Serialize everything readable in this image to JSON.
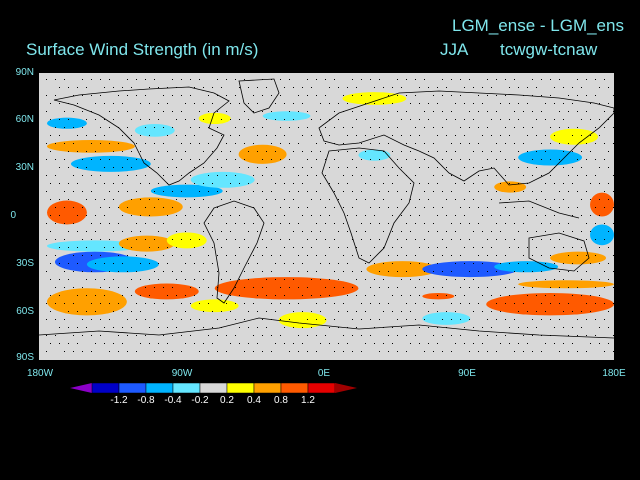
{
  "titles": {
    "main": "Surface Wind Strength (in m/s)",
    "experiment": "LGM_ense - LGM_ens",
    "season": "JJA",
    "variable": "tcwgw-tcnaw"
  },
  "map": {
    "background_color": "#d8d8d8",
    "lat_labels": [
      "90N",
      "60N",
      "30N",
      "0",
      "30S",
      "60S",
      "90S"
    ],
    "lon_labels": [
      "180W",
      "90W",
      "0E",
      "90E",
      "180E"
    ]
  },
  "colorbar": {
    "labels": [
      "-1.2",
      "-0.8",
      "-0.4",
      "-0.2",
      "0.2",
      "0.4",
      "0.8",
      "1.2"
    ],
    "colors": [
      "#0000c8",
      "#1e5aff",
      "#00b4ff",
      "#64e6ff",
      "#d8d8d8",
      "#ffff00",
      "#ffa000",
      "#ff5a00",
      "#e60000"
    ],
    "left_arrow_color": "#8c00c8",
    "right_arrow_color": "#a00000"
  },
  "chart_data": {
    "type": "heatmap",
    "title": "Surface Wind Strength (in m/s)",
    "subtitle": "LGM_ense - LGM_ens  JJA  tcwgw-tcnaw",
    "xlim": [
      -180,
      180
    ],
    "ylim": [
      -90,
      90
    ],
    "x_ticks": [
      "180W",
      "90W",
      "0E",
      "90E",
      "180E"
    ],
    "y_ticks": [
      "90N",
      "60N",
      "30N",
      "0",
      "30S",
      "60S",
      "90S"
    ],
    "legend": [
      "-1.2",
      "-0.8",
      "-0.4",
      "-0.2",
      "0.2",
      "0.4",
      "0.8",
      "1.2"
    ],
    "regions": [
      {
        "lon": [
          -170,
          -120
        ],
        "lat": [
          -35,
          -22
        ],
        "value": -1.0
      },
      {
        "lon": [
          -150,
          -105
        ],
        "lat": [
          -35,
          -25
        ],
        "value": -0.6
      },
      {
        "lon": [
          -175,
          -115
        ],
        "lat": [
          -22,
          -15
        ],
        "value": -0.3
      },
      {
        "lon": [
          -175,
          -125
        ],
        "lat": [
          -62,
          -45
        ],
        "value": 0.6
      },
      {
        "lon": [
          -120,
          -80
        ],
        "lat": [
          -52,
          -42
        ],
        "value": 0.8
      },
      {
        "lon": [
          -70,
          20
        ],
        "lat": [
          -52,
          -38
        ],
        "value": 0.9
      },
      {
        "lon": [
          -85,
          -55
        ],
        "lat": [
          -60,
          -52
        ],
        "value": 0.3
      },
      {
        "lon": [
          -130,
          -95
        ],
        "lat": [
          -22,
          -12
        ],
        "value": 0.6
      },
      {
        "lon": [
          -100,
          -75
        ],
        "lat": [
          -20,
          -10
        ],
        "value": 0.3
      },
      {
        "lon": [
          -175,
          -150
        ],
        "lat": [
          -5,
          10
        ],
        "value": 0.9
      },
      {
        "lon": [
          -130,
          -90
        ],
        "lat": [
          0,
          12
        ],
        "value": 0.6
      },
      {
        "lon": [
          -110,
          -65
        ],
        "lat": [
          12,
          20
        ],
        "value": -0.4
      },
      {
        "lon": [
          -85,
          -45
        ],
        "lat": [
          18,
          28
        ],
        "value": -0.3
      },
      {
        "lon": [
          -55,
          -25
        ],
        "lat": [
          33,
          45
        ],
        "value": 0.6
      },
      {
        "lon": [
          -160,
          -110
        ],
        "lat": [
          28,
          38
        ],
        "value": -0.4
      },
      {
        "lon": [
          -175,
          -120
        ],
        "lat": [
          40,
          48
        ],
        "value": 0.5
      },
      {
        "lon": [
          -175,
          -150
        ],
        "lat": [
          55,
          62
        ],
        "value": -0.4
      },
      {
        "lon": [
          -80,
          -60
        ],
        "lat": [
          58,
          65
        ],
        "value": 0.3
      },
      {
        "lon": [
          -120,
          -95
        ],
        "lat": [
          50,
          58
        ],
        "value": -0.3
      },
      {
        "lon": [
          25,
          70
        ],
        "lat": [
          -38,
          -28
        ],
        "value": 0.4
      },
      {
        "lon": [
          60,
          120
        ],
        "lat": [
          -38,
          -28
        ],
        "value": -0.9
      },
      {
        "lon": [
          105,
          145
        ],
        "lat": [
          -35,
          -28
        ],
        "value": -0.5
      },
      {
        "lon": [
          100,
          180
        ],
        "lat": [
          -62,
          -48
        ],
        "value": 0.9
      },
      {
        "lon": [
          120,
          180
        ],
        "lat": [
          -45,
          -40
        ],
        "value": 0.4
      },
      {
        "lon": [
          60,
          80
        ],
        "lat": [
          -52,
          -48
        ],
        "value": 0.8
      },
      {
        "lon": [
          140,
          175
        ],
        "lat": [
          -30,
          -22
        ],
        "value": 0.5
      },
      {
        "lon": [
          165,
          180
        ],
        "lat": [
          0,
          15
        ],
        "value": 0.8
      },
      {
        "lon": [
          165,
          180
        ],
        "lat": [
          -18,
          -5
        ],
        "value": -0.4
      },
      {
        "lon": [
          105,
          125
        ],
        "lat": [
          15,
          22
        ],
        "value": 0.4
      },
      {
        "lon": [
          120,
          160
        ],
        "lat": [
          32,
          42
        ],
        "value": -0.4
      },
      {
        "lon": [
          140,
          170
        ],
        "lat": [
          45,
          55
        ],
        "value": 0.3
      },
      {
        "lon": [
          -40,
          -10
        ],
        "lat": [
          60,
          66
        ],
        "value": -0.3
      },
      {
        "lon": [
          20,
          40
        ],
        "lat": [
          35,
          42
        ],
        "value": -0.3
      },
      {
        "lon": [
          -30,
          0
        ],
        "lat": [
          -70,
          -60
        ],
        "value": 0.3
      },
      {
        "lon": [
          60,
          90
        ],
        "lat": [
          -68,
          -60
        ],
        "value": -0.3
      },
      {
        "lon": [
          10,
          50
        ],
        "lat": [
          70,
          78
        ],
        "value": 0.3
      }
    ]
  }
}
